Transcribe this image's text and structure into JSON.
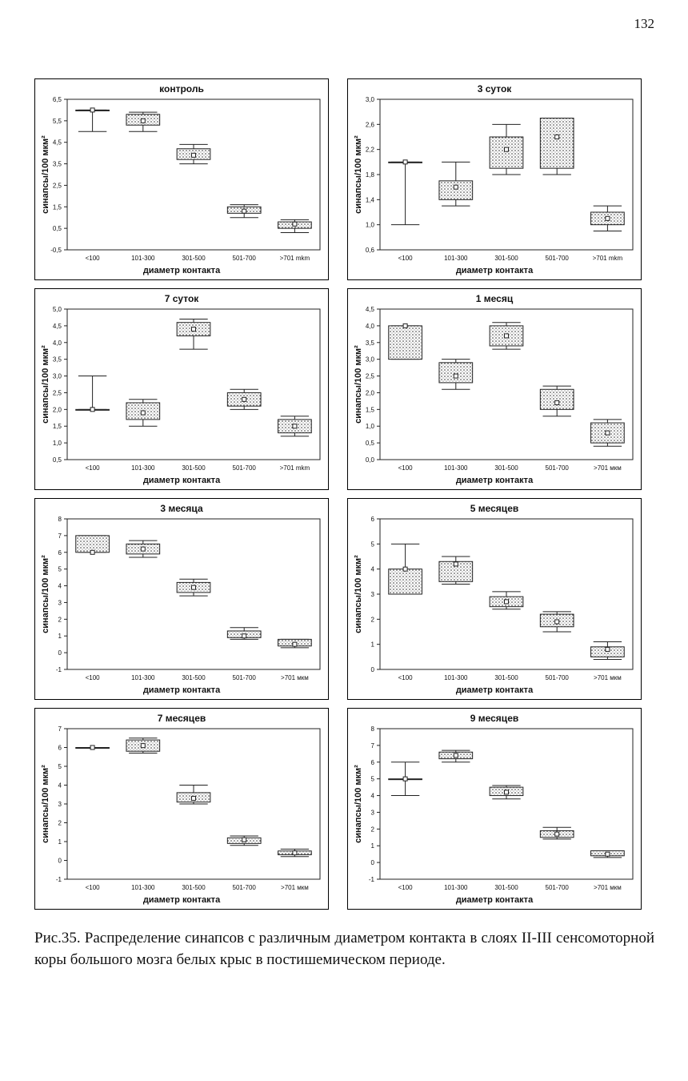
{
  "page": {
    "number": "132"
  },
  "caption": "Рис.35. Распределение синапсов с различным диаметром контакта в слоях II-III сенсомоторной коры большого мозга белых крыс в постишемическом периоде.",
  "chart_data": [
    {
      "type": "box",
      "title": "контроль",
      "xlabel": "диаметр контакта",
      "ylabel": "синапсы/100 мкм²",
      "ylim": [
        -0.5,
        6.5
      ],
      "yticks": [
        "6,5",
        "5,5",
        "4,5",
        "3,5",
        "2,5",
        "1,5",
        "0,5",
        "-0,5"
      ],
      "categories": [
        "<100",
        "101-300",
        "301-500",
        "501-700",
        ">701 mkm"
      ],
      "boxes": [
        {
          "min": 5.0,
          "q1": 6.0,
          "q3": 6.0,
          "max": 6.0,
          "mean": 6.0
        },
        {
          "min": 5.0,
          "q1": 5.3,
          "q3": 5.8,
          "max": 5.9,
          "mean": 5.5
        },
        {
          "min": 3.5,
          "q1": 3.7,
          "q3": 4.2,
          "max": 4.4,
          "mean": 3.9
        },
        {
          "min": 1.0,
          "q1": 1.2,
          "q3": 1.5,
          "max": 1.6,
          "mean": 1.3
        },
        {
          "min": 0.3,
          "q1": 0.5,
          "q3": 0.8,
          "max": 0.9,
          "mean": 0.7
        }
      ]
    },
    {
      "type": "box",
      "title": "3 суток",
      "xlabel": "диаметр контакта",
      "ylabel": "синапсы/100 мкм²",
      "ylim": [
        0.6,
        3.0
      ],
      "yticks": [
        "3,0",
        "2,6",
        "2,2",
        "1,8",
        "1,4",
        "1,0",
        "0,6"
      ],
      "categories": [
        "<100",
        "101-300",
        "301-500",
        "501-700",
        ">701 mkm"
      ],
      "boxes": [
        {
          "min": 1.0,
          "q1": 2.0,
          "q3": 2.0,
          "max": 2.0,
          "mean": 2.0
        },
        {
          "min": 1.3,
          "q1": 1.4,
          "q3": 1.7,
          "max": 2.0,
          "mean": 1.6
        },
        {
          "min": 1.8,
          "q1": 1.9,
          "q3": 2.4,
          "max": 2.6,
          "mean": 2.2
        },
        {
          "min": 1.8,
          "q1": 1.9,
          "q3": 2.7,
          "max": 2.7,
          "mean": 2.4
        },
        {
          "min": 0.9,
          "q1": 1.0,
          "q3": 1.2,
          "max": 1.3,
          "mean": 1.1
        }
      ]
    },
    {
      "type": "box",
      "title": "7 суток",
      "xlabel": "диаметр контакта",
      "ylabel": "синапсы/100 мкм²",
      "ylim": [
        0.5,
        5.0
      ],
      "yticks": [
        "5,0",
        "4,5",
        "4,0",
        "3,5",
        "3,0",
        "2,5",
        "2,0",
        "1,5",
        "1,0",
        "0,5"
      ],
      "categories": [
        "<100",
        "101-300",
        "301-500",
        "501-700",
        ">701 mkm"
      ],
      "boxes": [
        {
          "min": 2.0,
          "q1": 2.0,
          "q3": 2.0,
          "max": 3.0,
          "mean": 2.0
        },
        {
          "min": 1.5,
          "q1": 1.7,
          "q3": 2.2,
          "max": 2.3,
          "mean": 1.9
        },
        {
          "min": 3.8,
          "q1": 4.2,
          "q3": 4.6,
          "max": 4.7,
          "mean": 4.4
        },
        {
          "min": 2.0,
          "q1": 2.1,
          "q3": 2.5,
          "max": 2.6,
          "mean": 2.3
        },
        {
          "min": 1.2,
          "q1": 1.3,
          "q3": 1.7,
          "max": 1.8,
          "mean": 1.5
        }
      ]
    },
    {
      "type": "box",
      "title": "1 месяц",
      "xlabel": "диаметр контакта",
      "ylabel": "синапсы/100 мкм²",
      "ylim": [
        0.0,
        4.5
      ],
      "yticks": [
        "4,5",
        "4,0",
        "3,5",
        "3,0",
        "2,5",
        "2,0",
        "1,5",
        "1,0",
        "0,5",
        "0,0"
      ],
      "categories": [
        "<100",
        "101-300",
        "301-500",
        "501-700",
        ">701 мкм"
      ],
      "boxes": [
        {
          "min": 3.0,
          "q1": 3.0,
          "q3": 4.0,
          "max": 4.0,
          "mean": 4.0
        },
        {
          "min": 2.1,
          "q1": 2.3,
          "q3": 2.9,
          "max": 3.0,
          "mean": 2.5
        },
        {
          "min": 3.3,
          "q1": 3.4,
          "q3": 4.0,
          "max": 4.1,
          "mean": 3.7
        },
        {
          "min": 1.3,
          "q1": 1.5,
          "q3": 2.1,
          "max": 2.2,
          "mean": 1.7
        },
        {
          "min": 0.4,
          "q1": 0.5,
          "q3": 1.1,
          "max": 1.2,
          "mean": 0.8
        }
      ]
    },
    {
      "type": "box",
      "title": "3 месяца",
      "xlabel": "диаметр контакта",
      "ylabel": "синапсы/100 мкм²",
      "ylim": [
        -1,
        8
      ],
      "yticks": [
        "8",
        "7",
        "6",
        "5",
        "4",
        "3",
        "2",
        "1",
        "0",
        "-1"
      ],
      "categories": [
        "<100",
        "101-300",
        "301-500",
        "501-700",
        ">701 мкм"
      ],
      "boxes": [
        {
          "min": 6.0,
          "q1": 6.0,
          "q3": 7.0,
          "max": 7.0,
          "mean": 6.0
        },
        {
          "min": 5.7,
          "q1": 5.9,
          "q3": 6.5,
          "max": 6.7,
          "mean": 6.2
        },
        {
          "min": 3.4,
          "q1": 3.6,
          "q3": 4.2,
          "max": 4.4,
          "mean": 3.9
        },
        {
          "min": 0.8,
          "q1": 0.9,
          "q3": 1.3,
          "max": 1.5,
          "mean": 1.0
        },
        {
          "min": 0.3,
          "q1": 0.4,
          "q3": 0.8,
          "max": 0.8,
          "mean": 0.5
        }
      ]
    },
    {
      "type": "box",
      "title": "5 месяцев",
      "xlabel": "диаметр контакта",
      "ylabel": "синапсы/100 мкм²",
      "ylim": [
        0,
        6
      ],
      "yticks": [
        "6",
        "5",
        "4",
        "3",
        "2",
        "1",
        "0"
      ],
      "categories": [
        "<100",
        "101-300",
        "301-500",
        "501-700",
        ">701 мкм"
      ],
      "boxes": [
        {
          "min": 3.0,
          "q1": 3.0,
          "q3": 4.0,
          "max": 5.0,
          "mean": 4.0
        },
        {
          "min": 3.4,
          "q1": 3.5,
          "q3": 4.3,
          "max": 4.5,
          "mean": 4.2
        },
        {
          "min": 2.4,
          "q1": 2.5,
          "q3": 2.9,
          "max": 3.1,
          "mean": 2.7
        },
        {
          "min": 1.5,
          "q1": 1.7,
          "q3": 2.2,
          "max": 2.3,
          "mean": 1.9
        },
        {
          "min": 0.4,
          "q1": 0.5,
          "q3": 0.9,
          "max": 1.1,
          "mean": 0.8
        }
      ]
    },
    {
      "type": "box",
      "title": "7 месяцев",
      "xlabel": "диаметр контакта",
      "ylabel": "синапсы/100 мкм²",
      "ylim": [
        -1,
        7
      ],
      "yticks": [
        "7",
        "6",
        "5",
        "4",
        "3",
        "2",
        "1",
        "0",
        "-1"
      ],
      "categories": [
        "<100",
        "101-300",
        "301-500",
        "501-700",
        ">701 мкм"
      ],
      "boxes": [
        {
          "min": 6.0,
          "q1": 6.0,
          "q3": 6.0,
          "max": 6.0,
          "mean": 6.0
        },
        {
          "min": 5.7,
          "q1": 5.8,
          "q3": 6.4,
          "max": 6.5,
          "mean": 6.1
        },
        {
          "min": 3.0,
          "q1": 3.1,
          "q3": 3.6,
          "max": 4.0,
          "mean": 3.3
        },
        {
          "min": 0.8,
          "q1": 0.9,
          "q3": 1.2,
          "max": 1.3,
          "mean": 1.1
        },
        {
          "min": 0.2,
          "q1": 0.3,
          "q3": 0.5,
          "max": 0.6,
          "mean": 0.4
        }
      ]
    },
    {
      "type": "box",
      "title": "9 месяцев",
      "xlabel": "диаметр контакта",
      "ylabel": "синапсы/100 мкм²",
      "ylim": [
        -1,
        8
      ],
      "yticks": [
        "8",
        "7",
        "6",
        "5",
        "4",
        "3",
        "2",
        "1",
        "0",
        "-1"
      ],
      "categories": [
        "<100",
        "101-300",
        "301-500",
        "501-700",
        ">701 мкм"
      ],
      "boxes": [
        {
          "min": 4.0,
          "q1": 5.0,
          "q3": 5.0,
          "max": 6.0,
          "mean": 5.0
        },
        {
          "min": 6.0,
          "q1": 6.2,
          "q3": 6.6,
          "max": 6.7,
          "mean": 6.4
        },
        {
          "min": 3.8,
          "q1": 4.0,
          "q3": 4.5,
          "max": 4.6,
          "mean": 4.2
        },
        {
          "min": 1.4,
          "q1": 1.5,
          "q3": 1.9,
          "max": 2.1,
          "mean": 1.7
        },
        {
          "min": 0.3,
          "q1": 0.4,
          "q3": 0.7,
          "max": 0.7,
          "mean": 0.5
        }
      ]
    }
  ]
}
